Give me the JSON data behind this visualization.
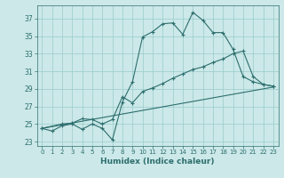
{
  "xlabel": "Humidex (Indice chaleur)",
  "bg_color": "#cce8e8",
  "grid_color": "#99cccc",
  "line_color": "#2d6e6e",
  "xlim": [
    -0.5,
    23.5
  ],
  "ylim": [
    22.5,
    38.5
  ],
  "xticks": [
    0,
    1,
    2,
    3,
    4,
    5,
    6,
    7,
    8,
    9,
    10,
    11,
    12,
    13,
    14,
    15,
    16,
    17,
    18,
    19,
    20,
    21,
    22,
    23
  ],
  "yticks": [
    23,
    25,
    27,
    29,
    31,
    33,
    35,
    37
  ],
  "line1_x": [
    0,
    1,
    2,
    3,
    4,
    5,
    6,
    7,
    8,
    9,
    10,
    11,
    12,
    13,
    14,
    15,
    16,
    17,
    18,
    19,
    20,
    21,
    22,
    23
  ],
  "line1_y": [
    24.5,
    24.2,
    24.8,
    25.0,
    24.4,
    25.0,
    24.5,
    23.2,
    27.5,
    29.8,
    34.9,
    35.5,
    36.4,
    36.5,
    35.2,
    37.7,
    36.8,
    35.4,
    35.4,
    33.5,
    30.4,
    29.8,
    29.5,
    29.3
  ],
  "line2_x": [
    0,
    2,
    3,
    4,
    5,
    6,
    7,
    8,
    9,
    10,
    11,
    12,
    13,
    14,
    15,
    16,
    17,
    18,
    19,
    20,
    21,
    22,
    23
  ],
  "line2_y": [
    24.5,
    25.0,
    25.1,
    25.6,
    25.5,
    25.0,
    25.5,
    28.1,
    27.4,
    28.7,
    29.1,
    29.6,
    30.2,
    30.7,
    31.2,
    31.5,
    32.0,
    32.4,
    33.0,
    33.3,
    30.4,
    29.5,
    29.3
  ],
  "line3_x": [
    0,
    23
  ],
  "line3_y": [
    24.5,
    29.2
  ]
}
